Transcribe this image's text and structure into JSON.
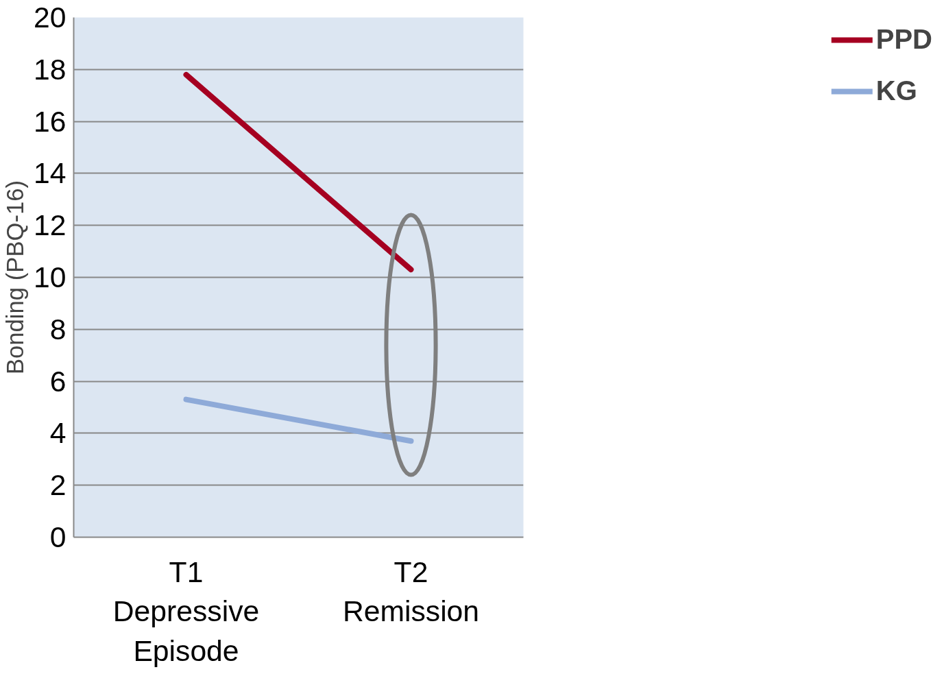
{
  "chart_data": {
    "type": "line",
    "categories": [
      "T1\nDepressive\nEpisode",
      "T2\nRemission"
    ],
    "ylabel": "Bonding (PBQ-16)",
    "ylim": [
      0,
      20
    ],
    "yticks": [
      0,
      2,
      4,
      6,
      8,
      10,
      12,
      14,
      16,
      18,
      20
    ],
    "series": [
      {
        "name": "PPD",
        "color": "#a50021",
        "values": [
          17.8,
          10.3
        ]
      },
      {
        "name": "KG",
        "color": "#8eaad8",
        "values": [
          5.3,
          3.7
        ]
      }
    ],
    "grid": "y",
    "legend": "right",
    "marker": "none",
    "line_style": "solid"
  }
}
